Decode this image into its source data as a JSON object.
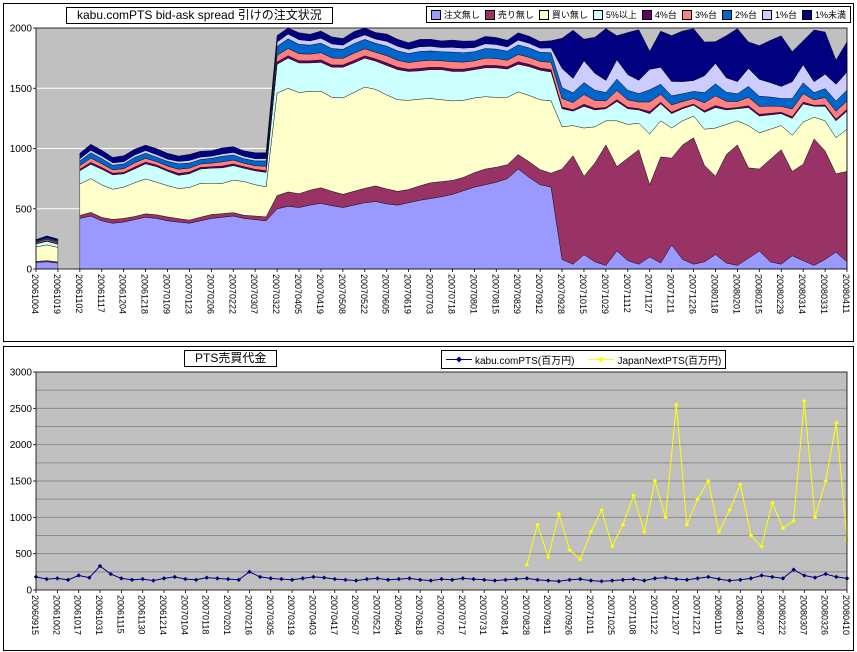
{
  "page": {
    "background": "#FFFFFF"
  },
  "chart_data": [
    {
      "id": "spread",
      "type": "area",
      "stacked": true,
      "title": "kabu.comPTS bid-ask spread 引けの注文状況",
      "ylim": [
        0,
        2000
      ],
      "yticks": [
        0,
        500,
        1000,
        1500,
        2000
      ],
      "grid_step": 500,
      "grid_color": "#FFFFFF",
      "plot_bg": "#C0C0C0",
      "legend_position": "top-right",
      "points_per_label": 2,
      "x_labels": [
        "20061004",
        "20061019",
        "20061102",
        "20061117",
        "20061204",
        "20061218",
        "20070109",
        "20070123",
        "20070206",
        "20070222",
        "20070307",
        "20070322",
        "20070405",
        "20070419",
        "20070508",
        "20070522",
        "20070605",
        "20070619",
        "20070703",
        "20070718",
        "20070801",
        "20070815",
        "20070829",
        "20070912",
        "20070928",
        "20071015",
        "20071029",
        "20071112",
        "20071127",
        "20071211",
        "20071226",
        "20080118",
        "20080201",
        "20080215",
        "20080229",
        "20080314",
        "20080331",
        "20080411"
      ],
      "series": [
        {
          "name": "注文無し",
          "color": "#9999FF",
          "values": [
            55,
            60,
            50,
            null,
            420,
            440,
            400,
            380,
            390,
            410,
            430,
            420,
            400,
            390,
            380,
            400,
            420,
            430,
            440,
            420,
            410,
            400,
            500,
            520,
            510,
            530,
            545,
            525,
            510,
            530,
            550,
            560,
            540,
            530,
            550,
            570,
            585,
            600,
            620,
            650,
            680,
            700,
            720,
            750,
            830,
            760,
            700,
            680,
            80,
            40,
            120,
            60,
            30,
            150,
            70,
            40,
            100,
            50,
            200,
            80,
            40,
            60,
            120,
            50,
            30,
            90,
            150,
            60,
            40,
            110,
            70,
            30,
            80,
            140,
            60
          ]
        },
        {
          "name": "売り無し",
          "color": "#993366",
          "values": [
            8,
            10,
            9,
            null,
            25,
            30,
            28,
            32,
            30,
            26,
            28,
            30,
            32,
            28,
            26,
            30,
            32,
            30,
            28,
            26,
            30,
            32,
            110,
            120,
            115,
            125,
            130,
            120,
            110,
            115,
            120,
            130,
            125,
            115,
            110,
            120,
            130,
            125,
            115,
            110,
            120,
            130,
            125,
            115,
            120,
            130,
            125,
            115,
            750,
            900,
            650,
            820,
            1000,
            700,
            850,
            950,
            600,
            880,
            720,
            950,
            1050,
            800,
            650,
            900,
            1000,
            750,
            680,
            850,
            950,
            700,
            800,
            1050,
            900,
            650,
            750
          ]
        },
        {
          "name": "買い無し",
          "color": "#FFFFCC",
          "values": [
            120,
            130,
            120,
            null,
            260,
            280,
            270,
            250,
            260,
            280,
            290,
            270,
            260,
            250,
            270,
            280,
            260,
            250,
            270,
            280,
            260,
            250,
            850,
            860,
            840,
            820,
            800,
            780,
            800,
            820,
            840,
            800,
            780,
            760,
            740,
            720,
            700,
            680,
            660,
            640,
            620,
            600,
            580,
            560,
            520,
            550,
            580,
            600,
            350,
            250,
            400,
            300,
            200,
            380,
            280,
            220,
            420,
            300,
            250,
            200,
            180,
            300,
            400,
            250,
            200,
            350,
            300,
            250,
            200,
            300,
            350,
            180,
            250,
            300,
            350
          ]
        },
        {
          "name": "5%以上",
          "color": "#CCFFFF",
          "values": [
            25,
            30,
            27,
            null,
            110,
            120,
            130,
            120,
            110,
            115,
            125,
            130,
            120,
            110,
            115,
            120,
            125,
            130,
            120,
            110,
            115,
            120,
            240,
            250,
            245,
            235,
            240,
            250,
            255,
            245,
            240,
            235,
            245,
            250,
            240,
            235,
            240,
            250,
            245,
            240,
            235,
            240,
            245,
            235,
            230,
            240,
            245,
            240,
            150,
            120,
            180,
            140,
            100,
            160,
            130,
            110,
            170,
            140,
            120,
            100,
            90,
            140,
            170,
            120,
            100,
            150,
            140,
            120,
            100,
            140,
            150,
            90,
            120,
            140,
            150
          ]
        },
        {
          "name": "4%台",
          "color": "#660066",
          "values": [
            4,
            5,
            5,
            null,
            12,
            15,
            14,
            13,
            12,
            15,
            14,
            13,
            12,
            15,
            14,
            13,
            12,
            15,
            14,
            13,
            12,
            15,
            18,
            20,
            19,
            18,
            20,
            19,
            18,
            20,
            19,
            18,
            20,
            19,
            18,
            20,
            19,
            18,
            20,
            19,
            18,
            20,
            19,
            18,
            20,
            19,
            18,
            20,
            15,
            12,
            18,
            14,
            10,
            16,
            13,
            11,
            17,
            14,
            12,
            10,
            9,
            14,
            17,
            12,
            10,
            15,
            14,
            12,
            10,
            14,
            15,
            9,
            12,
            14,
            15
          ]
        },
        {
          "name": "3%台",
          "color": "#FF8080",
          "values": [
            8,
            10,
            9,
            null,
            30,
            35,
            32,
            28,
            30,
            35,
            32,
            28,
            30,
            35,
            32,
            28,
            30,
            35,
            32,
            28,
            30,
            35,
            55,
            60,
            58,
            55,
            60,
            58,
            55,
            60,
            58,
            55,
            60,
            58,
            55,
            60,
            58,
            55,
            60,
            58,
            55,
            60,
            58,
            55,
            60,
            58,
            55,
            60,
            70,
            60,
            80,
            65,
            55,
            75,
            60,
            55,
            80,
            65,
            60,
            50,
            45,
            65,
            80,
            60,
            50,
            70,
            65,
            60,
            50,
            65,
            70,
            45,
            60,
            65,
            70
          ]
        },
        {
          "name": "2%台",
          "color": "#0066CC",
          "values": [
            8,
            9,
            9,
            null,
            40,
            45,
            42,
            38,
            40,
            45,
            42,
            38,
            40,
            45,
            42,
            38,
            40,
            45,
            42,
            38,
            40,
            45,
            75,
            80,
            78,
            75,
            80,
            78,
            75,
            80,
            78,
            75,
            80,
            78,
            75,
            80,
            78,
            75,
            80,
            78,
            75,
            80,
            78,
            75,
            80,
            78,
            75,
            80,
            90,
            80,
            100,
            85,
            70,
            95,
            80,
            70,
            100,
            85,
            75,
            65,
            60,
            85,
            100,
            75,
            65,
            90,
            85,
            75,
            65,
            85,
            90,
            60,
            75,
            85,
            90
          ]
        },
        {
          "name": "1%台",
          "color": "#CCCCFF",
          "values": [
            5,
            6,
            6,
            null,
            18,
            20,
            22,
            20,
            18,
            20,
            22,
            20,
            18,
            20,
            22,
            20,
            18,
            20,
            22,
            20,
            18,
            20,
            35,
            40,
            38,
            35,
            40,
            38,
            35,
            40,
            38,
            35,
            40,
            38,
            35,
            40,
            38,
            35,
            40,
            38,
            35,
            40,
            38,
            35,
            40,
            38,
            35,
            40,
            160,
            120,
            180,
            140,
            100,
            160,
            130,
            110,
            170,
            140,
            120,
            100,
            90,
            140,
            170,
            120,
            100,
            150,
            140,
            120,
            100,
            140,
            150,
            90,
            120,
            140,
            150
          ]
        },
        {
          "name": "1%未満",
          "color": "#000080",
          "values": [
            12,
            15,
            14,
            null,
            45,
            50,
            48,
            45,
            50,
            48,
            45,
            50,
            48,
            45,
            50,
            48,
            45,
            50,
            48,
            45,
            50,
            48,
            55,
            60,
            58,
            55,
            60,
            58,
            55,
            60,
            58,
            55,
            60,
            58,
            55,
            60,
            58,
            55,
            60,
            58,
            55,
            60,
            58,
            55,
            60,
            58,
            55,
            60,
            250,
            400,
            180,
            300,
            430,
            200,
            350,
            420,
            150,
            300,
            380,
            420,
            430,
            280,
            180,
            350,
            440,
            220,
            280,
            350,
            420,
            250,
            200,
            430,
            350,
            200,
            250
          ]
        }
      ]
    },
    {
      "id": "turnover",
      "type": "line",
      "title": "PTS売買代金",
      "ylim": [
        0,
        3000
      ],
      "yticks": [
        0,
        500,
        1000,
        1500,
        2000,
        2500,
        3000
      ],
      "grid_step": 250,
      "grid_color": "#8C8C8C",
      "plot_bg": "#C0C0C0",
      "legend_position": "top-center",
      "points_per_label": 2,
      "x_labels": [
        "20060915",
        "20061002",
        "20061017",
        "20061031",
        "20061115",
        "20061130",
        "20061214",
        "20070104",
        "20070118",
        "20070201",
        "20070216",
        "20070305",
        "20070319",
        "20070403",
        "20070417",
        "20070507",
        "20070521",
        "20070604",
        "20070618",
        "20070702",
        "20070717",
        "20070731",
        "20070814",
        "20070828",
        "20070911",
        "20070926",
        "20071011",
        "20071025",
        "20071108",
        "20071122",
        "20071207",
        "20071221",
        "20080110",
        "20080124",
        "20080207",
        "20080222",
        "20080307",
        "20080326",
        "20080410"
      ],
      "series": [
        {
          "name": "kabu.comPTS(百万円)",
          "color": "#000080",
          "marker": "diamond",
          "values": [
            180,
            150,
            160,
            140,
            200,
            170,
            330,
            220,
            160,
            140,
            150,
            130,
            160,
            180,
            150,
            140,
            170,
            160,
            150,
            140,
            250,
            180,
            160,
            150,
            140,
            160,
            180,
            170,
            150,
            140,
            130,
            150,
            160,
            140,
            150,
            160,
            140,
            130,
            150,
            140,
            160,
            150,
            140,
            130,
            140,
            150,
            160,
            140,
            130,
            120,
            140,
            150,
            130,
            120,
            130,
            140,
            150,
            130,
            160,
            170,
            150,
            140,
            160,
            180,
            150,
            130,
            140,
            160,
            200,
            180,
            160,
            280,
            200,
            170,
            220,
            180,
            160
          ]
        },
        {
          "name": "JapanNextPTS(百万円)",
          "color": "#FFFF00",
          "marker": "diamond",
          "values": [
            null,
            null,
            null,
            null,
            null,
            null,
            null,
            null,
            null,
            null,
            null,
            null,
            null,
            null,
            null,
            null,
            null,
            null,
            null,
            null,
            null,
            null,
            null,
            null,
            null,
            null,
            null,
            null,
            null,
            null,
            null,
            null,
            null,
            null,
            null,
            null,
            null,
            null,
            null,
            null,
            null,
            null,
            null,
            null,
            null,
            null,
            350,
            900,
            450,
            1050,
            550,
            420,
            800,
            1100,
            600,
            900,
            1300,
            800,
            1500,
            1000,
            2550,
            900,
            1250,
            1500,
            800,
            1100,
            1450,
            750,
            600,
            1200,
            850,
            950,
            2600,
            1000,
            1500,
            2300,
            700
          ]
        }
      ]
    }
  ]
}
